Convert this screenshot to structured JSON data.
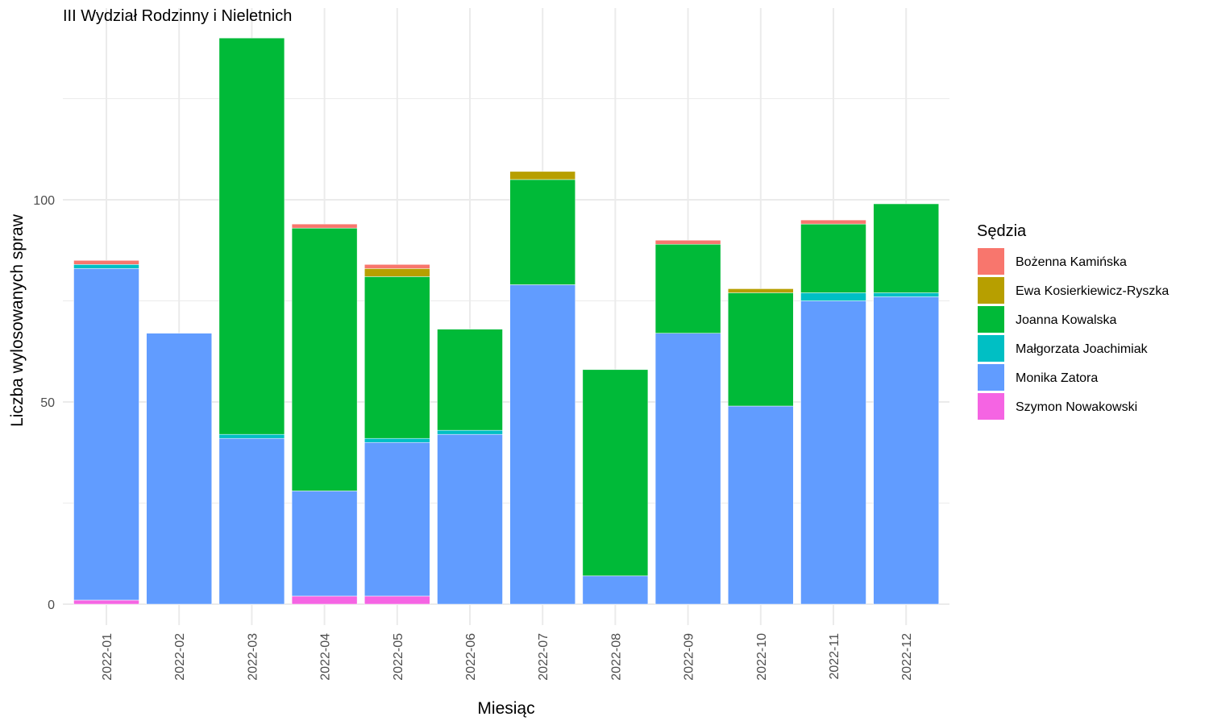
{
  "chart_data": {
    "type": "bar",
    "stacked": true,
    "title": "III Wydział Rodzinny i Nieletnich",
    "xlabel": "Miesiąc",
    "ylabel": "Liczba wylosowanych spraw",
    "ylim": [
      0,
      140
    ],
    "yticks": [
      0,
      50,
      100
    ],
    "grid": true,
    "legend_title": "Sędzia",
    "legend_position": "right",
    "categories": [
      "2022-01",
      "2022-02",
      "2022-03",
      "2022-04",
      "2022-05",
      "2022-06",
      "2022-07",
      "2022-08",
      "2022-09",
      "2022-10",
      "2022-11",
      "2022-12"
    ],
    "series": [
      {
        "name": "Szymon Nowakowski",
        "color": "#F564E3",
        "values": [
          1,
          0,
          0,
          2,
          2,
          0,
          0,
          0,
          0,
          0,
          0,
          0
        ]
      },
      {
        "name": "Monika Zatora",
        "color": "#619CFF",
        "values": [
          82,
          67,
          41,
          26,
          38,
          42,
          79,
          7,
          67,
          49,
          75,
          76
        ]
      },
      {
        "name": "Małgorzata Joachimiak",
        "color": "#00BFC4",
        "values": [
          1,
          0,
          1,
          0,
          1,
          1,
          0,
          0,
          0,
          0,
          2,
          1
        ]
      },
      {
        "name": "Joanna Kowalska",
        "color": "#00BA38",
        "values": [
          0,
          0,
          98,
          65,
          40,
          25,
          26,
          51,
          22,
          28,
          17,
          22
        ]
      },
      {
        "name": "Ewa Kosierkiewicz-Ryszka",
        "color": "#B79F00",
        "values": [
          0,
          0,
          0,
          0,
          2,
          0,
          2,
          0,
          0,
          1,
          0,
          0
        ]
      },
      {
        "name": "Bożenna Kamińska",
        "color": "#F8766D",
        "values": [
          1,
          0,
          0,
          1,
          1,
          0,
          0,
          0,
          1,
          0,
          1,
          0
        ]
      }
    ],
    "legend_order": [
      "Bożenna Kamińska",
      "Ewa Kosierkiewicz-Ryszka",
      "Joanna Kowalska",
      "Małgorzata Joachimiak",
      "Monika Zatora",
      "Szymon Nowakowski"
    ]
  }
}
